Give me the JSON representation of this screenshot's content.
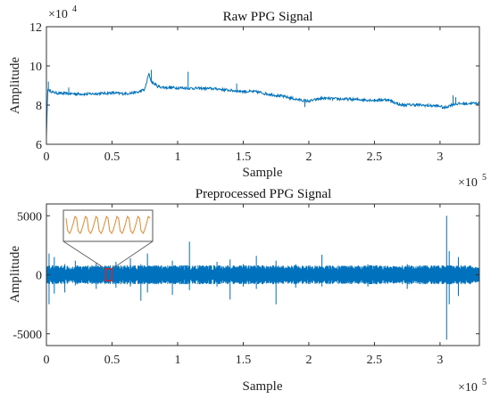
{
  "chart_data": [
    {
      "type": "line",
      "title": "Raw PPG Signal",
      "xlabel": "Sample",
      "ylabel": "Amplitude",
      "xlim": [
        0,
        330000
      ],
      "ylim": [
        60000,
        120000
      ],
      "x_ticks": [
        0,
        50000,
        100000,
        150000,
        200000,
        250000,
        300000
      ],
      "x_tick_labels": [
        "0",
        "0.5",
        "1",
        "1.5",
        "2",
        "2.5",
        "3"
      ],
      "x_multiplier": "×10",
      "x_multiplier_exp": "5",
      "y_ticks": [
        60000,
        80000,
        100000,
        120000
      ],
      "y_tick_labels": [
        "6",
        "8",
        "10",
        "12"
      ],
      "y_multiplier": "×10",
      "y_multiplier_exp": "4",
      "series_color": "#0072BD",
      "series": [
        {
          "x": [
            0,
            1000,
            5000,
            10000,
            20000,
            30000,
            40000,
            50000,
            60000,
            70000,
            75000,
            78000,
            80000,
            85000,
            90000,
            100000,
            110000,
            120000,
            130000,
            140000,
            150000,
            160000,
            170000,
            180000,
            190000,
            200000,
            210000,
            220000,
            230000,
            240000,
            250000,
            260000,
            270000,
            280000,
            290000,
            300000,
            303000,
            310000,
            320000,
            330000
          ],
          "y": [
            64000,
            88000,
            86500,
            86000,
            85800,
            85600,
            85900,
            86200,
            85800,
            86600,
            88000,
            96000,
            92000,
            89500,
            89000,
            88800,
            88600,
            88500,
            88300,
            87500,
            87000,
            86800,
            85500,
            84500,
            83000,
            82000,
            83500,
            83200,
            83000,
            82800,
            82500,
            82800,
            80000,
            80200,
            79800,
            79500,
            78500,
            80500,
            80800,
            81000
          ]
        }
      ],
      "spikes": [
        {
          "x": 1500,
          "y": 92000
        },
        {
          "x": 17000,
          "y": 89000
        },
        {
          "x": 80000,
          "y": 98000
        },
        {
          "x": 108000,
          "y": 97000
        },
        {
          "x": 145000,
          "y": 91000
        },
        {
          "x": 197000,
          "y": 79000
        },
        {
          "x": 307000,
          "y": 80000
        },
        {
          "x": 310000,
          "y": 85000
        },
        {
          "x": 312000,
          "y": 84000
        }
      ]
    },
    {
      "type": "line",
      "title": "Preprocessed PPG Signal",
      "xlabel": "Sample",
      "ylabel": "Amplitude",
      "xlim": [
        0,
        330000
      ],
      "ylim": [
        -6000,
        6000
      ],
      "x_ticks": [
        0,
        50000,
        100000,
        150000,
        200000,
        250000,
        300000
      ],
      "x_tick_labels": [
        "0",
        "0.5",
        "1",
        "1.5",
        "2",
        "2.5",
        "3"
      ],
      "x_multiplier": "×10",
      "x_multiplier_exp": "5",
      "y_ticks": [
        -5000,
        0,
        5000
      ],
      "y_tick_labels": [
        "-5000",
        "0",
        "5000"
      ],
      "series_color": "#0072BD",
      "inset_color": "#E8872C",
      "highlight_x": [
        45000,
        50000
      ],
      "highlight_y": [
        -500,
        500
      ],
      "band": {
        "amplitude": 700
      },
      "spikes": [
        {
          "x": 2000,
          "hi": 1800,
          "lo": -2500
        },
        {
          "x": 6000,
          "hi": 1500,
          "lo": -1600
        },
        {
          "x": 14000,
          "hi": 900,
          "lo": -1500
        },
        {
          "x": 22000,
          "hi": 1200,
          "lo": -900
        },
        {
          "x": 38000,
          "hi": 1000,
          "lo": -1200
        },
        {
          "x": 53000,
          "hi": 1100,
          "lo": -1100
        },
        {
          "x": 64000,
          "hi": 1400,
          "lo": -1000
        },
        {
          "x": 72000,
          "hi": 900,
          "lo": -2200
        },
        {
          "x": 77000,
          "hi": 1800,
          "lo": -1500
        },
        {
          "x": 96000,
          "hi": 1200,
          "lo": -1700
        },
        {
          "x": 109000,
          "hi": 2800,
          "lo": -1300
        },
        {
          "x": 130000,
          "hi": 1100,
          "lo": -1000
        },
        {
          "x": 140000,
          "hi": 1300,
          "lo": -2100
        },
        {
          "x": 150000,
          "hi": 900,
          "lo": -1000
        },
        {
          "x": 160000,
          "hi": 1600,
          "lo": -1200
        },
        {
          "x": 175000,
          "hi": 1200,
          "lo": -2500
        },
        {
          "x": 190000,
          "hi": 900,
          "lo": -1100
        },
        {
          "x": 210000,
          "hi": 1700,
          "lo": -1000
        },
        {
          "x": 245000,
          "hi": 900,
          "lo": -1000
        },
        {
          "x": 275000,
          "hi": 900,
          "lo": -1200
        },
        {
          "x": 305000,
          "hi": 5000,
          "lo": -5500
        },
        {
          "x": 307000,
          "hi": 2000,
          "lo": -2500
        },
        {
          "x": 314000,
          "hi": 1500,
          "lo": -1800
        }
      ]
    }
  ]
}
